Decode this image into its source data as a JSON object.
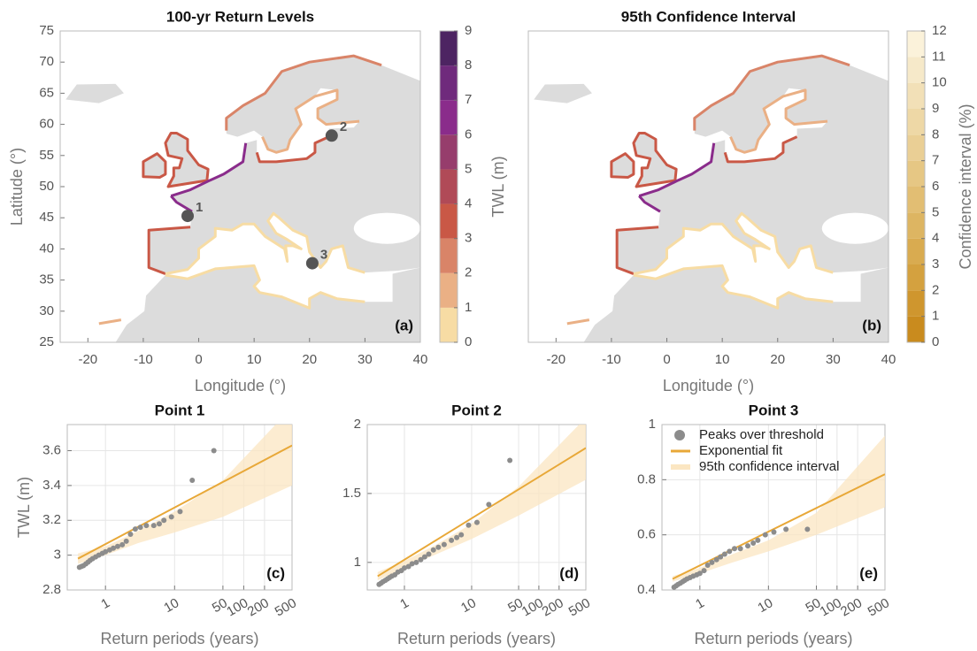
{
  "chart_data": [
    {
      "type": "map",
      "title": "100-yr Return Levels",
      "xlabel": "Longitude (°)",
      "ylabel": "Latitude (°)",
      "xlim": [
        -25,
        40
      ],
      "ylim": [
        25,
        75
      ],
      "xticks": [
        -20,
        -10,
        0,
        10,
        20,
        30,
        40
      ],
      "yticks": [
        25,
        30,
        35,
        40,
        45,
        50,
        55,
        60,
        65,
        70,
        75
      ],
      "panel_label": "(a)",
      "points": [
        {
          "label": "1",
          "x": -2,
          "y": 45.3
        },
        {
          "label": "2",
          "x": 24,
          "y": 58.2
        },
        {
          "label": "3",
          "x": 20.5,
          "y": 37.7
        }
      ],
      "point_color": "#555555",
      "colorbar": {
        "label": "TWL (m)",
        "lim": [
          0,
          9
        ],
        "ticks": [
          0,
          1,
          2,
          3,
          4,
          5,
          6,
          7,
          8,
          9
        ],
        "colors": [
          "#f7dca4",
          "#eab085",
          "#d98468",
          "#c95846",
          "#b04a57",
          "#963d6c",
          "#8a2c8b",
          "#6f2a7c",
          "#4d2462"
        ]
      }
    },
    {
      "type": "map",
      "title": "95th Confidence Interval",
      "xlabel": "Longitude (°)",
      "xlim": [
        -25,
        40
      ],
      "ylim": [
        25,
        75
      ],
      "xticks": [
        -20,
        -10,
        0,
        10,
        20,
        30,
        40
      ],
      "panel_label": "(b)",
      "colorbar": {
        "label": "Confidence interval (%)",
        "lim": [
          0,
          12
        ],
        "ticks": [
          0,
          1,
          2,
          3,
          4,
          5,
          6,
          7,
          8,
          9,
          10,
          11,
          12
        ],
        "colors": [
          "#c98b1e",
          "#cf962e",
          "#d4a13f",
          "#d9ab50",
          "#ddb562",
          "#e2be73",
          "#e6c784",
          "#eacf95",
          "#eed8a6",
          "#f2e0b7",
          "#f6e9c9",
          "#fbf2da"
        ]
      }
    },
    {
      "type": "scatter",
      "title": "Point 1",
      "xlabel": "Return periods (years)",
      "ylabel": "TWL (m)",
      "log_x": true,
      "grid": true,
      "xlim": [
        0.28,
        500
      ],
      "xticks": [
        1,
        10,
        50,
        100,
        200,
        500
      ],
      "ylim": [
        2.8,
        3.75
      ],
      "yticks": [
        2.8,
        3,
        3.2,
        3.4,
        3.6
      ],
      "panel_label": "(c)",
      "series": [
        {
          "kind": "scatter",
          "color": "#8c8c8c",
          "x": [
            0.42,
            0.45,
            0.48,
            0.52,
            0.56,
            0.6,
            0.65,
            0.72,
            0.8,
            0.9,
            1.0,
            1.15,
            1.3,
            1.5,
            1.75,
            2.0,
            2.3,
            2.7,
            3.2,
            3.9,
            5,
            6,
            7,
            9,
            12,
            18,
            37
          ],
          "values": [
            2.93,
            2.935,
            2.94,
            2.95,
            2.96,
            2.97,
            2.98,
            2.99,
            3.0,
            3.01,
            3.02,
            3.03,
            3.04,
            3.05,
            3.06,
            3.08,
            3.12,
            3.15,
            3.16,
            3.17,
            3.17,
            3.18,
            3.2,
            3.22,
            3.25,
            3.43,
            3.6
          ]
        },
        {
          "kind": "line",
          "color": "#e8a838",
          "x": [
            0.4,
            500
          ],
          "values": [
            2.98,
            3.63
          ]
        },
        {
          "kind": "band",
          "color": "#fbe6c2",
          "x": [
            0.4,
            1,
            3,
            10,
            50,
            500
          ],
          "lower": [
            2.95,
            3.0,
            3.07,
            3.13,
            3.22,
            3.4
          ],
          "upper": [
            3.01,
            3.05,
            3.14,
            3.25,
            3.43,
            3.85
          ]
        }
      ]
    },
    {
      "type": "scatter",
      "title": "Point 2",
      "xlabel": "Return periods (years)",
      "log_x": true,
      "grid": true,
      "xlim": [
        0.28,
        500
      ],
      "xticks": [
        1,
        10,
        50,
        100,
        200,
        500
      ],
      "ylim": [
        0.8,
        2
      ],
      "yticks": [
        1,
        1.5,
        2
      ],
      "panel_label": "(d)",
      "series": [
        {
          "kind": "scatter",
          "color": "#8c8c8c",
          "x": [
            0.42,
            0.45,
            0.48,
            0.52,
            0.56,
            0.6,
            0.65,
            0.72,
            0.8,
            0.9,
            1.0,
            1.15,
            1.3,
            1.5,
            1.75,
            2.0,
            2.3,
            2.7,
            3.2,
            3.9,
            5,
            6,
            7,
            9,
            12,
            18,
            37
          ],
          "values": [
            0.84,
            0.85,
            0.86,
            0.87,
            0.88,
            0.89,
            0.9,
            0.91,
            0.93,
            0.94,
            0.96,
            0.97,
            0.99,
            1.0,
            1.02,
            1.04,
            1.06,
            1.09,
            1.11,
            1.13,
            1.16,
            1.18,
            1.2,
            1.27,
            1.29,
            1.42,
            1.74
          ]
        },
        {
          "kind": "line",
          "color": "#e8a838",
          "x": [
            0.4,
            500
          ],
          "values": [
            0.9,
            1.83
          ]
        },
        {
          "kind": "band",
          "color": "#fbe6c2",
          "x": [
            0.4,
            1,
            3,
            10,
            50,
            500
          ],
          "lower": [
            0.87,
            0.96,
            1.06,
            1.17,
            1.34,
            1.6
          ],
          "upper": [
            0.93,
            1.01,
            1.13,
            1.28,
            1.55,
            2.05
          ]
        }
      ]
    },
    {
      "type": "scatter",
      "title": "Point 3",
      "xlabel": "Return periods (years)",
      "log_x": true,
      "grid": true,
      "legend": "upper left",
      "xlim": [
        0.28,
        500
      ],
      "xticks": [
        1,
        10,
        50,
        100,
        200,
        500
      ],
      "ylim": [
        0.4,
        1
      ],
      "yticks": [
        0.4,
        0.6,
        0.8,
        1
      ],
      "panel_label": "(e)",
      "series": [
        {
          "name": "Peaks over threshold",
          "kind": "scatter",
          "color": "#8c8c8c",
          "x": [
            0.42,
            0.45,
            0.48,
            0.52,
            0.56,
            0.6,
            0.65,
            0.72,
            0.8,
            0.9,
            1.0,
            1.15,
            1.3,
            1.5,
            1.75,
            2.0,
            2.3,
            2.7,
            3.2,
            3.9,
            5,
            6,
            7,
            9,
            12,
            18,
            37
          ],
          "values": [
            0.41,
            0.415,
            0.42,
            0.425,
            0.43,
            0.435,
            0.44,
            0.445,
            0.45,
            0.455,
            0.46,
            0.47,
            0.49,
            0.5,
            0.51,
            0.52,
            0.53,
            0.54,
            0.55,
            0.55,
            0.56,
            0.57,
            0.58,
            0.6,
            0.61,
            0.62,
            0.62
          ]
        },
        {
          "name": "Exponential fit",
          "kind": "line",
          "color": "#e8a838",
          "x": [
            0.4,
            500
          ],
          "values": [
            0.44,
            0.82
          ]
        },
        {
          "name": "95th confidence interval",
          "kind": "band",
          "color": "#fbe6c2",
          "x": [
            0.4,
            1,
            3,
            10,
            50,
            500
          ],
          "lower": [
            0.43,
            0.46,
            0.5,
            0.54,
            0.6,
            0.7
          ],
          "upper": [
            0.45,
            0.48,
            0.53,
            0.58,
            0.68,
            0.96
          ]
        }
      ]
    }
  ]
}
